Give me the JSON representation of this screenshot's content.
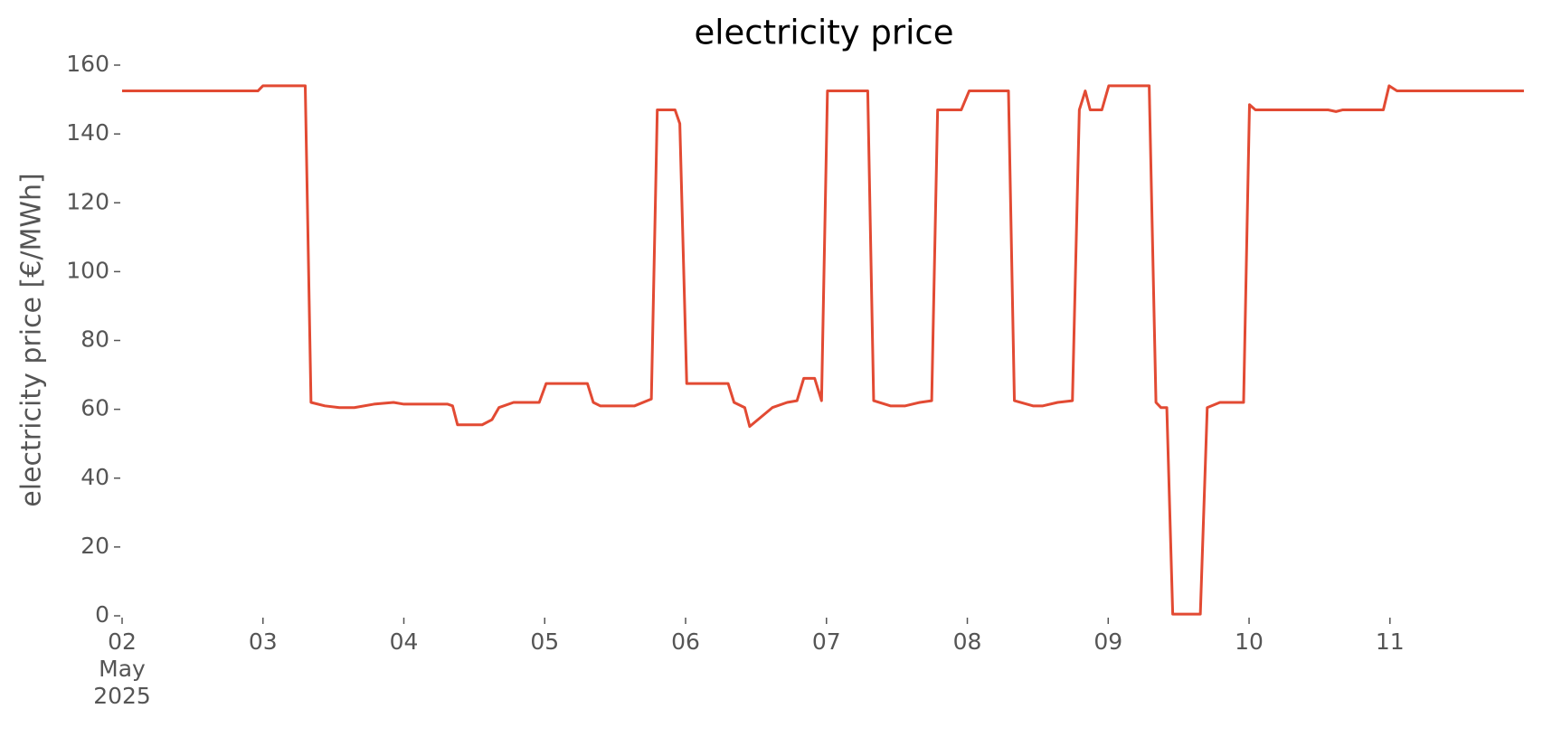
{
  "chart_data": {
    "type": "line",
    "title": "electricity price",
    "y_label": "electricity price [€/MWh]",
    "x": [
      2.0,
      2.964,
      3.0,
      3.3,
      3.341,
      3.439,
      3.543,
      3.648,
      3.788,
      3.927,
      4.0,
      4.311,
      4.346,
      4.381,
      4.556,
      4.626,
      4.675,
      4.779,
      4.961,
      5.01,
      5.303,
      5.345,
      5.394,
      5.638,
      5.757,
      5.799,
      5.925,
      5.959,
      6.008,
      6.302,
      6.344,
      6.42,
      6.455,
      6.616,
      6.721,
      6.791,
      6.839,
      6.916,
      6.965,
      7.007,
      7.042,
      7.293,
      7.335,
      7.454,
      7.559,
      7.663,
      7.747,
      7.789,
      7.957,
      8.013,
      8.292,
      8.334,
      8.466,
      8.536,
      8.641,
      8.746,
      8.795,
      8.837,
      8.872,
      8.955,
      9.004,
      9.291,
      9.339,
      9.374,
      9.416,
      9.458,
      9.654,
      9.703,
      9.793,
      9.961,
      10.003,
      10.045,
      10.561,
      10.617,
      10.666,
      10.953,
      10.994,
      11.05,
      11.749,
      11.951
    ],
    "series": [
      {
        "name": "electricity price",
        "color": "#e24a33",
        "values": [
          152.5,
          152.5,
          154,
          154,
          62,
          61,
          60.5,
          60.5,
          61.5,
          62,
          61.5,
          61.5,
          61,
          55.5,
          55.5,
          57,
          60.5,
          62,
          62,
          67.5,
          67.5,
          62,
          61,
          61,
          63,
          147,
          147,
          143,
          67.5,
          67.5,
          62,
          60.5,
          55,
          60.5,
          62,
          62.5,
          69,
          69,
          62.5,
          152.5,
          152.5,
          152.5,
          62.5,
          61,
          61,
          62,
          62.5,
          147,
          147,
          152.5,
          152.5,
          62.5,
          61,
          61,
          62,
          62.5,
          147,
          152.5,
          147,
          147,
          154,
          154,
          62,
          60.5,
          60.5,
          0.5,
          0.5,
          60.5,
          62,
          62,
          148.5,
          147,
          147,
          146.5,
          147,
          147,
          154,
          152.5,
          152.5,
          152.5
        ]
      }
    ],
    "xlim": [
      2,
      11.958
    ],
    "xticks": [
      {
        "value": 2,
        "label": "02\nMay\n2025"
      },
      {
        "value": 3,
        "label": "03"
      },
      {
        "value": 4,
        "label": "04"
      },
      {
        "value": 5,
        "label": "05"
      },
      {
        "value": 6,
        "label": "06"
      },
      {
        "value": 7,
        "label": "07"
      },
      {
        "value": 8,
        "label": "08"
      },
      {
        "value": 9,
        "label": "09"
      },
      {
        "value": 10,
        "label": "10"
      },
      {
        "value": 11,
        "label": "11"
      }
    ],
    "ylim": [
      0,
      160
    ],
    "yticks": [
      0,
      20,
      40,
      60,
      80,
      100,
      120,
      140,
      160
    ],
    "grid": false
  }
}
